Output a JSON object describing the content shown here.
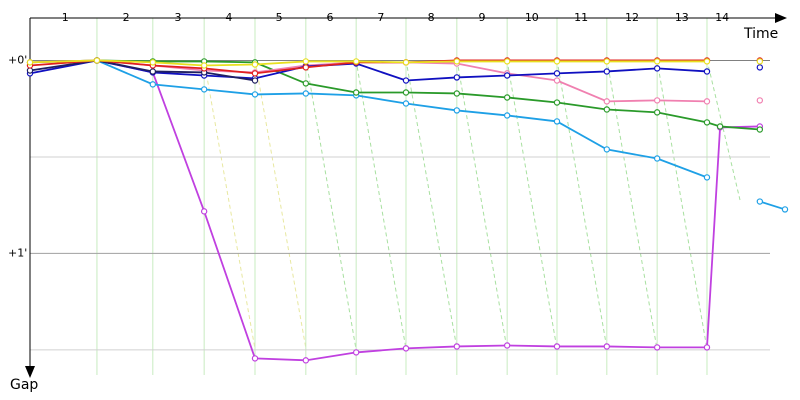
{
  "chart_data": {
    "type": "line",
    "x_label": "Time",
    "y_label": "Gap",
    "xlim": [
      0,
      15
    ],
    "ylim": [
      -0.22,
      1.63
    ],
    "x": [
      0,
      1.33,
      2.44,
      3.46,
      4.47,
      5.48,
      6.48,
      7.47,
      8.48,
      9.48,
      10.47,
      11.46,
      12.46,
      13.45,
      13.71,
      14.5,
      15
    ],
    "xticks": [
      {
        "value": 0.7,
        "label": "1"
      },
      {
        "value": 1.91,
        "label": "2"
      },
      {
        "value": 2.94,
        "label": "3"
      },
      {
        "value": 3.95,
        "label": "4"
      },
      {
        "value": 4.95,
        "label": "5"
      },
      {
        "value": 5.96,
        "label": "6"
      },
      {
        "value": 6.97,
        "label": "7"
      },
      {
        "value": 7.97,
        "label": "8"
      },
      {
        "value": 8.98,
        "label": "9"
      },
      {
        "value": 9.97,
        "label": "10"
      },
      {
        "value": 10.95,
        "label": "11"
      },
      {
        "value": 11.96,
        "label": "12"
      },
      {
        "value": 12.95,
        "label": "13"
      },
      {
        "value": 13.75,
        "label": "14"
      }
    ],
    "yticks": [
      {
        "value": 0,
        "label": "+0'"
      },
      {
        "value": 1,
        "label": "+1'"
      }
    ],
    "y_minor_ticks": [
      0.5,
      1.5
    ],
    "series": [
      {
        "name": "Purple",
        "color": "#c040e0",
        "values": [
          null,
          0,
          0.062,
          0.782,
          1.544,
          1.554,
          1.513,
          1.492,
          1.482,
          1.477,
          1.482,
          1.482,
          1.487,
          1.487,
          0.347,
          0.342,
          null
        ]
      },
      {
        "name": "Cyan",
        "color": "#1ea0e6",
        "values": [
          null,
          0,
          0.124,
          0.15,
          0.176,
          0.171,
          0.181,
          0.223,
          0.259,
          0.285,
          0.316,
          0.461,
          0.508,
          0.606,
          null,
          0.731,
          0.772
        ]
      },
      {
        "name": "Green",
        "color": "#2a9a2a",
        "values": [
          0.01,
          0,
          0.005,
          0.005,
          0.01,
          0.119,
          0.166,
          0.166,
          0.171,
          0.192,
          0.218,
          0.254,
          0.269,
          0.321,
          0.342,
          0.358,
          null
        ]
      },
      {
        "name": "Pink",
        "color": "#f080b0",
        "values": [
          0.01,
          0,
          0.026,
          0.052,
          0.062,
          0.026,
          0.01,
          0.01,
          0.016,
          0.067,
          0.104,
          0.212,
          0.207,
          0.212,
          null,
          0.207,
          null
        ]
      },
      {
        "name": "Dark blue",
        "color": "#1010c0",
        "values": [
          0.067,
          0,
          0.062,
          0.078,
          0.093,
          0.031,
          0.016,
          0.104,
          0.088,
          0.078,
          0.067,
          0.057,
          0.041,
          0.057,
          null,
          0.036,
          null
        ]
      },
      {
        "name": "Navy",
        "color": "#202060",
        "values": [
          0.052,
          0,
          0.057,
          0.062,
          0.104,
          null,
          null,
          null,
          null,
          null,
          null,
          null,
          null,
          null,
          null,
          null,
          null
        ]
      },
      {
        "name": "Red",
        "color": "#e02020",
        "values": [
          0.026,
          0,
          0.026,
          0.041,
          0.067,
          0.036,
          0.01,
          0.01,
          0,
          0,
          0,
          0,
          0,
          0,
          null,
          0,
          null
        ]
      },
      {
        "name": "Yellow",
        "color": "#e8e020",
        "values": [
          0.01,
          0,
          0.01,
          0.026,
          0.021,
          0.005,
          0.005,
          0.01,
          0.005,
          0.005,
          0.005,
          0.005,
          0.005,
          0.005,
          null,
          0.005,
          null
        ]
      }
    ]
  }
}
